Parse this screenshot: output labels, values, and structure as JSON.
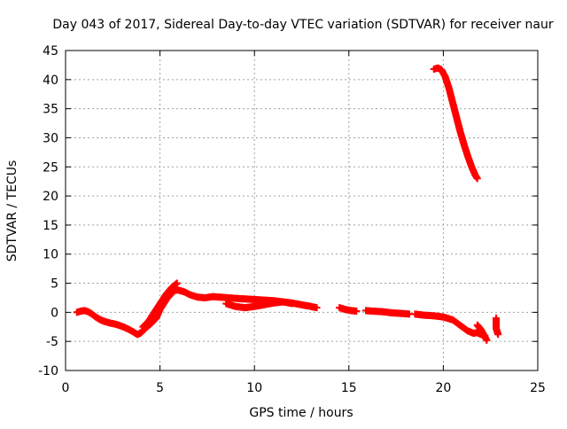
{
  "chart_data": {
    "type": "scatter",
    "title": "Day 043 of 2017, Sidereal Day-to-day VTEC variation (SDTVAR) for receiver naur",
    "xlabel": "GPS time / hours",
    "ylabel": "SDTVAR / TECUs",
    "xlim": [
      0,
      25
    ],
    "ylim": [
      -10,
      45
    ],
    "xticks": [
      0,
      5,
      10,
      15,
      20,
      25
    ],
    "yticks": [
      -10,
      -5,
      0,
      5,
      10,
      15,
      20,
      25,
      30,
      35,
      40,
      45
    ],
    "grid": true,
    "marker": "plus",
    "series": [
      {
        "name": "SDTVAR",
        "color": "#ff0000",
        "segments": [
          {
            "x": [
              0.6,
              0.8,
              1.0,
              1.2,
              1.4,
              1.6,
              1.8,
              2.0,
              2.3,
              2.6,
              2.9,
              3.2,
              3.5,
              3.8,
              4.0,
              4.2,
              4.5,
              4.8,
              5.0,
              5.2,
              5.4,
              5.6,
              5.8,
              6.0,
              6.3,
              6.6,
              7.0,
              7.4,
              7.8,
              8.2,
              8.6,
              9.0,
              9.5,
              10.0,
              10.5,
              11.0,
              11.5,
              12.0,
              12.5,
              13.0,
              13.3
            ],
            "y": [
              0.0,
              0.2,
              0.3,
              0.1,
              -0.3,
              -0.8,
              -1.2,
              -1.5,
              -1.8,
              -2.0,
              -2.3,
              -2.7,
              -3.2,
              -3.8,
              -3.5,
              -2.8,
              -2.0,
              -1.0,
              0.5,
              1.5,
              2.5,
              3.2,
              3.8,
              3.8,
              3.5,
              3.0,
              2.6,
              2.5,
              2.7,
              2.6,
              2.5,
              2.4,
              2.3,
              2.2,
              2.1,
              2.0,
              1.8,
              1.6,
              1.3,
              1.0,
              0.8
            ]
          },
          {
            "x": [
              4.1,
              4.4,
              4.7,
              5.0,
              5.3,
              5.6,
              5.9
            ],
            "y": [
              -2.5,
              -1.5,
              0.0,
              1.5,
              3.0,
              4.2,
              5.0
            ]
          },
          {
            "x": [
              8.5,
              9.0,
              9.5,
              10.0,
              10.5,
              11.0,
              11.5,
              12.0
            ],
            "y": [
              1.5,
              1.0,
              0.8,
              1.0,
              1.3,
              1.6,
              1.8,
              1.5
            ]
          },
          {
            "x": [
              14.5,
              14.8,
              15.1,
              15.4
            ],
            "y": [
              0.8,
              0.5,
              0.3,
              0.2
            ]
          },
          {
            "x": [
              15.9,
              16.3,
              16.8,
              17.3,
              17.8,
              18.2
            ],
            "y": [
              0.3,
              0.2,
              0.1,
              -0.1,
              -0.2,
              -0.3
            ]
          },
          {
            "x": [
              18.5,
              19.0,
              19.5,
              20.0,
              20.5,
              21.0,
              21.3,
              21.6,
              21.8,
              22.0,
              22.2
            ],
            "y": [
              -0.3,
              -0.5,
              -0.6,
              -0.8,
              -1.3,
              -2.5,
              -3.2,
              -3.6,
              -3.5,
              -3.8,
              -4.0
            ]
          },
          {
            "x": [
              21.8,
              21.9,
              22.0,
              22.2,
              22.3
            ],
            "y": [
              -2.2,
              -2.6,
              -3.0,
              -4.2,
              -4.8
            ]
          },
          {
            "x": [
              22.8,
              22.8,
              22.9
            ],
            "y": [
              -1.0,
              -2.8,
              -3.8
            ]
          },
          {
            "x": [
              19.5,
              19.7,
              19.9,
              20.1,
              20.3,
              20.5,
              20.7,
              20.9,
              21.1,
              21.3,
              21.5,
              21.7,
              21.8
            ],
            "y": [
              41.8,
              42.0,
              41.7,
              40.5,
              38.5,
              36.0,
              33.5,
              31.0,
              28.8,
              26.8,
              25.0,
              23.5,
              23.0
            ]
          }
        ]
      }
    ]
  }
}
